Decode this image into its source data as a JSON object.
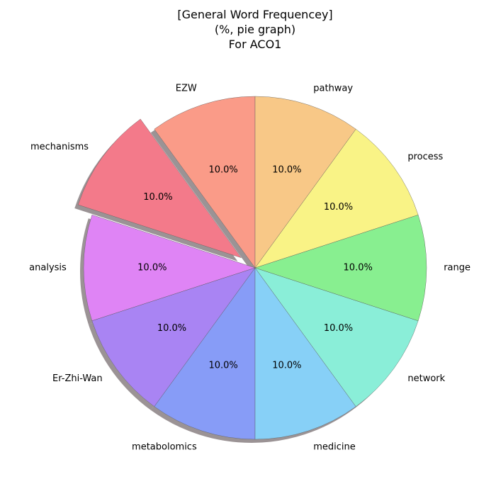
{
  "chart_data": {
    "type": "pie",
    "title_lines": [
      "[General Word Frequencey]",
      "(%, pie graph)",
      "For ACO1"
    ],
    "categories": [
      "EZW",
      "mechanisms",
      "analysis",
      "Er-Zhi-Wan",
      "metabolomics",
      "medicine",
      "network",
      "range",
      "process",
      "pathway"
    ],
    "values": [
      10.0,
      10.0,
      10.0,
      10.0,
      10.0,
      10.0,
      10.0,
      10.0,
      10.0,
      10.0
    ],
    "value_labels": [
      "10.0%",
      "10.0%",
      "10.0%",
      "10.0%",
      "10.0%",
      "10.0%",
      "10.0%",
      "10.0%",
      "10.0%",
      "10.0%"
    ],
    "colors": [
      "#fa9b88",
      "#f37a8a",
      "#df84f5",
      "#a984f3",
      "#879cf7",
      "#87d0f7",
      "#8aeed8",
      "#88ef90",
      "#f9f386",
      "#f8c887"
    ],
    "exploded": [
      "mechanisms"
    ],
    "start_angle_deg": 90,
    "direction": "counterclockwise",
    "shadow": true,
    "legend": "none"
  }
}
